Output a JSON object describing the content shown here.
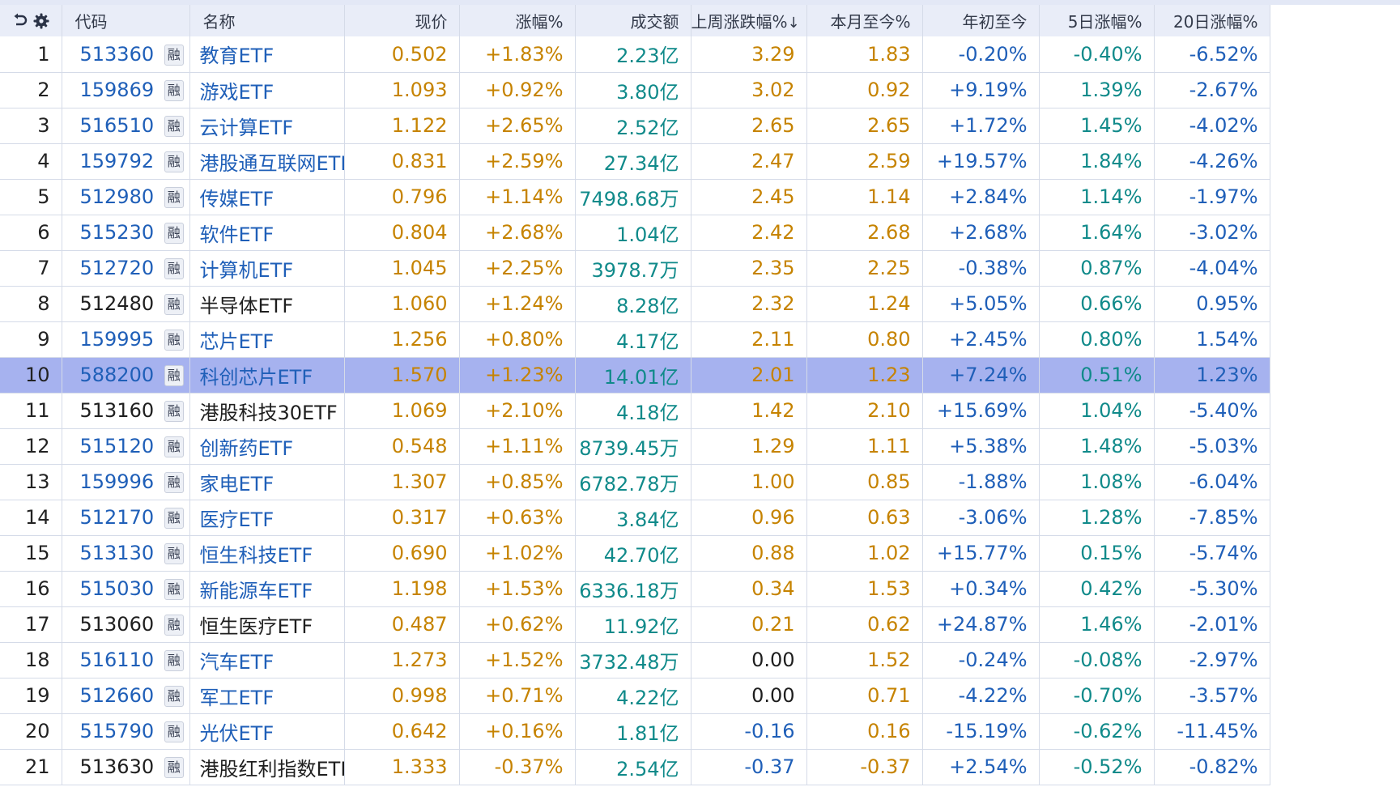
{
  "columns": {
    "code": "代码",
    "name": "名称",
    "price": "现价",
    "change_pct": "涨幅%",
    "turnover": "成交额",
    "last_week": "上周涨跌幅%",
    "last_week_sort": "↓",
    "mtd": "本月至今%",
    "ytd": "年初至今",
    "d5": "5日涨幅%",
    "d20": "20日涨幅%"
  },
  "header_icons": [
    "refresh-icon",
    "gear-icon"
  ],
  "rong_label": "融",
  "colors": {
    "header_bg": "#e9edf8",
    "selected_row": "#a6b2ef",
    "blue": "#1f5fb8",
    "gold": "#c68300",
    "teal": "#108a8a",
    "dark": "#1e1e1e"
  },
  "selected_index": 9,
  "rows": [
    {
      "idx": "1",
      "code": "513360",
      "name": "教育ETF",
      "price": "0.502",
      "chg": "+1.83%",
      "amt": "2.23亿",
      "lw": "3.29",
      "mtd": "1.83",
      "ytd": "-0.20%",
      "d5": "-0.40%",
      "d20": "-6.52%",
      "dark": false
    },
    {
      "idx": "2",
      "code": "159869",
      "name": "游戏ETF",
      "price": "1.093",
      "chg": "+0.92%",
      "amt": "3.80亿",
      "lw": "3.02",
      "mtd": "0.92",
      "ytd": "+9.19%",
      "d5": "1.39%",
      "d20": "-2.67%",
      "dark": false
    },
    {
      "idx": "3",
      "code": "516510",
      "name": "云计算ETF",
      "price": "1.122",
      "chg": "+2.65%",
      "amt": "2.52亿",
      "lw": "2.65",
      "mtd": "2.65",
      "ytd": "+1.72%",
      "d5": "1.45%",
      "d20": "-4.02%",
      "dark": false
    },
    {
      "idx": "4",
      "code": "159792",
      "name": "港股通互联网ETF",
      "price": "0.831",
      "chg": "+2.59%",
      "amt": "27.34亿",
      "lw": "2.47",
      "mtd": "2.59",
      "ytd": "+19.57%",
      "d5": "1.84%",
      "d20": "-4.26%",
      "dark": false
    },
    {
      "idx": "5",
      "code": "512980",
      "name": "传媒ETF",
      "price": "0.796",
      "chg": "+1.14%",
      "amt": "7498.68万",
      "lw": "2.45",
      "mtd": "1.14",
      "ytd": "+2.84%",
      "d5": "1.14%",
      "d20": "-1.97%",
      "dark": false
    },
    {
      "idx": "6",
      "code": "515230",
      "name": "软件ETF",
      "price": "0.804",
      "chg": "+2.68%",
      "amt": "1.04亿",
      "lw": "2.42",
      "mtd": "2.68",
      "ytd": "+2.68%",
      "d5": "1.64%",
      "d20": "-3.02%",
      "dark": false
    },
    {
      "idx": "7",
      "code": "512720",
      "name": "计算机ETF",
      "price": "1.045",
      "chg": "+2.25%",
      "amt": "3978.7万",
      "lw": "2.35",
      "mtd": "2.25",
      "ytd": "-0.38%",
      "d5": "0.87%",
      "d20": "-4.04%",
      "dark": false
    },
    {
      "idx": "8",
      "code": "512480",
      "name": "半导体ETF",
      "price": "1.060",
      "chg": "+1.24%",
      "amt": "8.28亿",
      "lw": "2.32",
      "mtd": "1.24",
      "ytd": "+5.05%",
      "d5": "0.66%",
      "d20": "0.95%",
      "dark": true
    },
    {
      "idx": "9",
      "code": "159995",
      "name": "芯片ETF",
      "price": "1.256",
      "chg": "+0.80%",
      "amt": "4.17亿",
      "lw": "2.11",
      "mtd": "0.80",
      "ytd": "+2.45%",
      "d5": "0.80%",
      "d20": "1.54%",
      "dark": false
    },
    {
      "idx": "10",
      "code": "588200",
      "name": "科创芯片ETF",
      "price": "1.570",
      "chg": "+1.23%",
      "amt": "14.01亿",
      "lw": "2.01",
      "mtd": "1.23",
      "ytd": "+7.24%",
      "d5": "0.51%",
      "d20": "1.23%",
      "dark": false
    },
    {
      "idx": "11",
      "code": "513160",
      "name": "港股科技30ETF",
      "price": "1.069",
      "chg": "+2.10%",
      "amt": "4.18亿",
      "lw": "1.42",
      "mtd": "2.10",
      "ytd": "+15.69%",
      "d5": "1.04%",
      "d20": "-5.40%",
      "dark": true
    },
    {
      "idx": "12",
      "code": "515120",
      "name": "创新药ETF",
      "price": "0.548",
      "chg": "+1.11%",
      "amt": "8739.45万",
      "lw": "1.29",
      "mtd": "1.11",
      "ytd": "+5.38%",
      "d5": "1.48%",
      "d20": "-5.03%",
      "dark": false
    },
    {
      "idx": "13",
      "code": "159996",
      "name": "家电ETF",
      "price": "1.307",
      "chg": "+0.85%",
      "amt": "6782.78万",
      "lw": "1.00",
      "mtd": "0.85",
      "ytd": "-1.88%",
      "d5": "1.08%",
      "d20": "-6.04%",
      "dark": false
    },
    {
      "idx": "14",
      "code": "512170",
      "name": "医疗ETF",
      "price": "0.317",
      "chg": "+0.63%",
      "amt": "3.84亿",
      "lw": "0.96",
      "mtd": "0.63",
      "ytd": "-3.06%",
      "d5": "1.28%",
      "d20": "-7.85%",
      "dark": false
    },
    {
      "idx": "15",
      "code": "513130",
      "name": "恒生科技ETF",
      "price": "0.690",
      "chg": "+1.02%",
      "amt": "42.70亿",
      "lw": "0.88",
      "mtd": "1.02",
      "ytd": "+15.77%",
      "d5": "0.15%",
      "d20": "-5.74%",
      "dark": false
    },
    {
      "idx": "16",
      "code": "515030",
      "name": "新能源车ETF",
      "price": "1.198",
      "chg": "+1.53%",
      "amt": "6336.18万",
      "lw": "0.34",
      "mtd": "1.53",
      "ytd": "+0.34%",
      "d5": "0.42%",
      "d20": "-5.30%",
      "dark": false
    },
    {
      "idx": "17",
      "code": "513060",
      "name": "恒生医疗ETF",
      "price": "0.487",
      "chg": "+0.62%",
      "amt": "11.92亿",
      "lw": "0.21",
      "mtd": "0.62",
      "ytd": "+24.87%",
      "d5": "1.46%",
      "d20": "-2.01%",
      "dark": true
    },
    {
      "idx": "18",
      "code": "516110",
      "name": "汽车ETF",
      "price": "1.273",
      "chg": "+1.52%",
      "amt": "3732.48万",
      "lw": "0.00",
      "mtd": "1.52",
      "ytd": "-0.24%",
      "d5": "-0.08%",
      "d20": "-2.97%",
      "dark": false
    },
    {
      "idx": "19",
      "code": "512660",
      "name": "军工ETF",
      "price": "0.998",
      "chg": "+0.71%",
      "amt": "4.22亿",
      "lw": "0.00",
      "mtd": "0.71",
      "ytd": "-4.22%",
      "d5": "-0.70%",
      "d20": "-3.57%",
      "dark": false
    },
    {
      "idx": "20",
      "code": "515790",
      "name": "光伏ETF",
      "price": "0.642",
      "chg": "+0.16%",
      "amt": "1.81亿",
      "lw": "-0.16",
      "mtd": "0.16",
      "ytd": "-15.19%",
      "d5": "-0.62%",
      "d20": "-11.45%",
      "dark": false
    },
    {
      "idx": "21",
      "code": "513630",
      "name": "港股红利指数ETF",
      "price": "1.333",
      "chg": "-0.37%",
      "amt": "2.54亿",
      "lw": "-0.37",
      "mtd": "-0.37",
      "ytd": "+2.54%",
      "d5": "-0.52%",
      "d20": "-0.82%",
      "dark": true
    }
  ]
}
